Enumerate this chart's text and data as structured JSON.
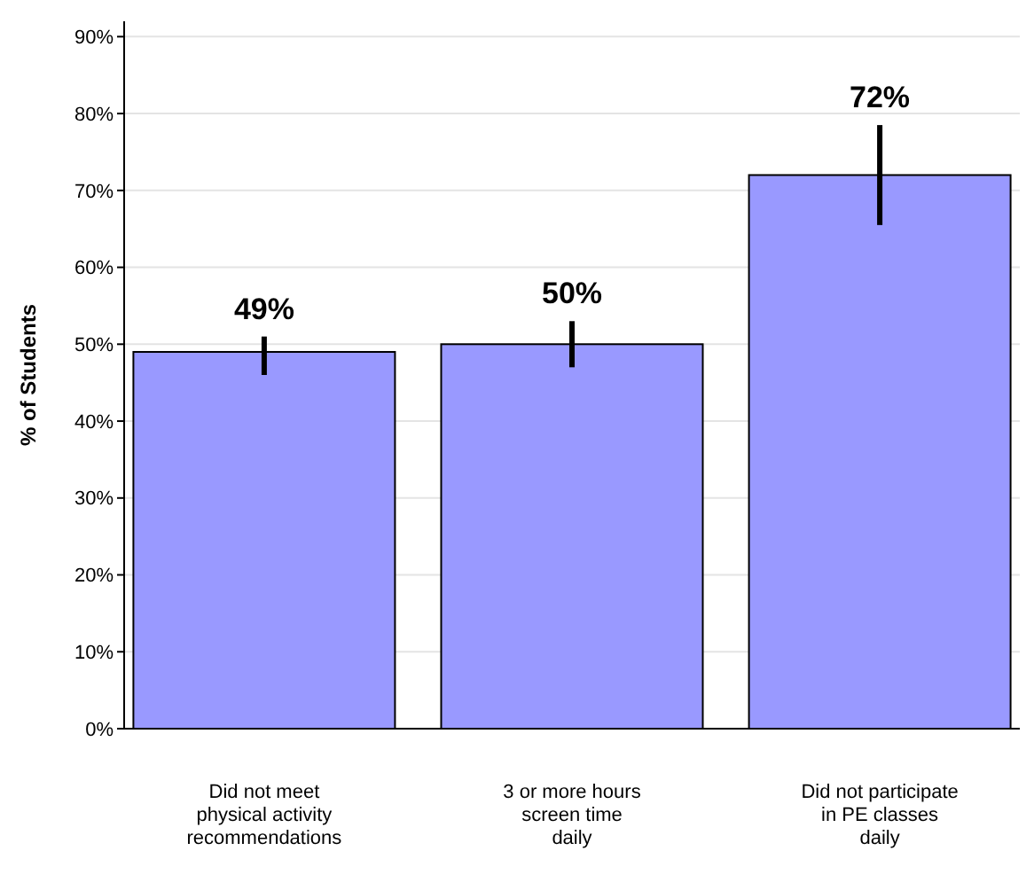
{
  "chart_data": {
    "type": "bar",
    "ylabel": "% of Students",
    "categories": [
      "Did not meet\nphysical activity\nrecommendations",
      "3 or more hours\nscreen time\ndaily",
      "Did not participate\nin PE classes\ndaily"
    ],
    "values": [
      49,
      50,
      72
    ],
    "color": "#9999ff",
    "errors": [
      [
        46,
        51
      ],
      [
        47,
        53
      ],
      [
        65.5,
        78.5
      ]
    ],
    "value_labels": [
      "49%",
      "50%",
      "72%"
    ],
    "ylim": [
      0,
      92
    ],
    "yticks": [
      {
        "value": 0,
        "label": "0%"
      },
      {
        "value": 10,
        "label": "10%"
      },
      {
        "value": 20,
        "label": "20%"
      },
      {
        "value": 30,
        "label": "30%"
      },
      {
        "value": 40,
        "label": "40%"
      },
      {
        "value": 50,
        "label": "50%"
      },
      {
        "value": 60,
        "label": "60%"
      },
      {
        "value": 70,
        "label": "70%"
      },
      {
        "value": 80,
        "label": "80%"
      },
      {
        "value": 90,
        "label": "90%"
      }
    ],
    "grid": "y"
  }
}
